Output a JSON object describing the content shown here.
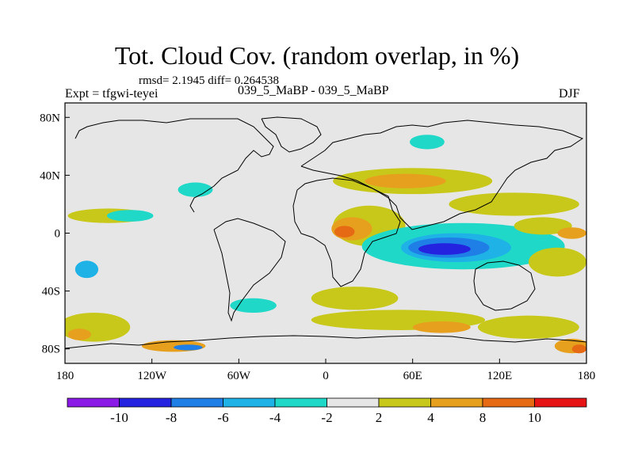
{
  "title": "Tot. Cloud Cov. (random overlap, in %)",
  "stats": "rmsd= 2.1945 diff= 0.264538",
  "experiment": "Expt = tfgwi-teyei",
  "case": "039_5_MaBP - 039_5_MaBP",
  "season": "DJF",
  "map": {
    "lon_range": [
      -180,
      180
    ],
    "lat_range": [
      -90,
      90
    ],
    "x_ticks": [
      {
        "value": -180,
        "label": "180"
      },
      {
        "value": -120,
        "label": "120W"
      },
      {
        "value": -60,
        "label": "60W"
      },
      {
        "value": 0,
        "label": "0"
      },
      {
        "value": 60,
        "label": "60E"
      },
      {
        "value": 120,
        "label": "120E"
      },
      {
        "value": 180,
        "label": "180"
      }
    ],
    "y_ticks": [
      {
        "value": 80,
        "label": "80N"
      },
      {
        "value": 40,
        "label": "40N"
      },
      {
        "value": 0,
        "label": "0"
      },
      {
        "value": -40,
        "label": "40S"
      },
      {
        "value": -80,
        "label": "80S"
      }
    ],
    "background_color": "#e6e6e6",
    "coastline_color": "#000000"
  },
  "colorbar": {
    "labels": [
      "-10",
      "-8",
      "-6",
      "-4",
      "-2",
      "2",
      "4",
      "8",
      "10"
    ],
    "colors": [
      "#8c1ae6",
      "#2323e0",
      "#1f7fe6",
      "#1fb2e6",
      "#1fd8c8",
      "#e6e6e6",
      "#c8c81a",
      "#e6a01e",
      "#e66a14",
      "#e61414"
    ]
  },
  "anomaly_regions": [
    {
      "color": "#c8c81a",
      "lon": 30,
      "lat": 5,
      "rx": 25,
      "ry": 14
    },
    {
      "color": "#e6a01e",
      "lon": 18,
      "lat": 3,
      "rx": 14,
      "ry": 8
    },
    {
      "color": "#e66a14",
      "lon": 13,
      "lat": 1,
      "rx": 7,
      "ry": 4
    },
    {
      "color": "#1fd8c8",
      "lon": 95,
      "lat": -9,
      "rx": 70,
      "ry": 16
    },
    {
      "color": "#1fb2e6",
      "lon": 90,
      "lat": -10,
      "rx": 38,
      "ry": 10
    },
    {
      "color": "#1f7fe6",
      "lon": 85,
      "lat": -10,
      "rx": 28,
      "ry": 7
    },
    {
      "color": "#2323e0",
      "lon": 82,
      "lat": -11,
      "rx": 18,
      "ry": 4
    },
    {
      "color": "#c8c81a",
      "lon": 60,
      "lat": 36,
      "rx": 55,
      "ry": 9
    },
    {
      "color": "#e6a01e",
      "lon": 55,
      "lat": 36,
      "rx": 28,
      "ry": 5
    },
    {
      "color": "#c8c81a",
      "lon": 130,
      "lat": 20,
      "rx": 45,
      "ry": 8
    },
    {
      "color": "#c8c81a",
      "lon": 160,
      "lat": -20,
      "rx": 20,
      "ry": 10
    },
    {
      "color": "#c8c81a",
      "lon": -150,
      "lat": 12,
      "rx": 28,
      "ry": 5
    },
    {
      "color": "#1fd8c8",
      "lon": -135,
      "lat": 12,
      "rx": 16,
      "ry": 4
    },
    {
      "color": "#1fd8c8",
      "lon": -90,
      "lat": 30,
      "rx": 12,
      "ry": 5
    },
    {
      "color": "#1fd8c8",
      "lon": 70,
      "lat": 63,
      "rx": 12,
      "ry": 5
    },
    {
      "color": "#1fd8c8",
      "lon": -50,
      "lat": -50,
      "rx": 16,
      "ry": 5
    },
    {
      "color": "#c8c81a",
      "lon": 20,
      "lat": -45,
      "rx": 30,
      "ry": 8
    },
    {
      "color": "#c8c81a",
      "lon": -160,
      "lat": -65,
      "rx": 25,
      "ry": 10
    },
    {
      "color": "#e6a01e",
      "lon": -170,
      "lat": -70,
      "rx": 8,
      "ry": 4
    },
    {
      "color": "#c8c81a",
      "lon": 50,
      "lat": -60,
      "rx": 60,
      "ry": 7
    },
    {
      "color": "#e6a01e",
      "lon": 80,
      "lat": -65,
      "rx": 20,
      "ry": 4
    },
    {
      "color": "#c8c81a",
      "lon": 140,
      "lat": -65,
      "rx": 35,
      "ry": 8
    },
    {
      "color": "#e6a01e",
      "lon": 170,
      "lat": -78,
      "rx": 12,
      "ry": 5
    },
    {
      "color": "#e66a14",
      "lon": 175,
      "lat": -80,
      "rx": 5,
      "ry": 3
    },
    {
      "color": "#e6a01e",
      "lon": -105,
      "lat": -78,
      "rx": 22,
      "ry": 4
    },
    {
      "color": "#1f7fe6",
      "lon": -95,
      "lat": -79,
      "rx": 10,
      "ry": 2
    },
    {
      "color": "#1fb2e6",
      "lon": -165,
      "lat": -25,
      "rx": 8,
      "ry": 6
    },
    {
      "color": "#c8c81a",
      "lon": 150,
      "lat": 5,
      "rx": 20,
      "ry": 6
    },
    {
      "color": "#e6a01e",
      "lon": 170,
      "lat": 0,
      "rx": 10,
      "ry": 4
    }
  ]
}
